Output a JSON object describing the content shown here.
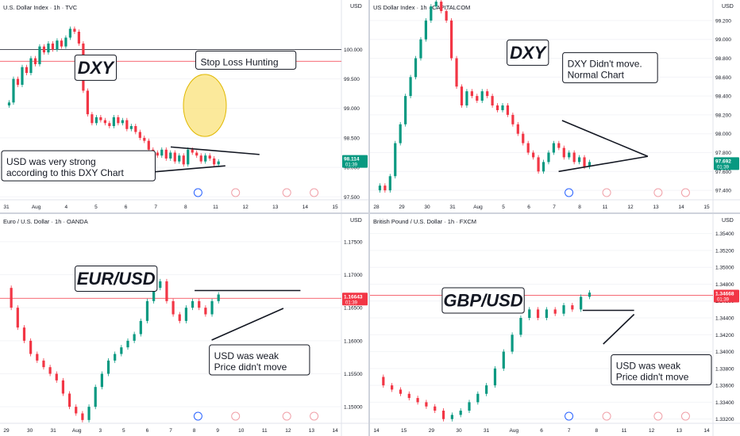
{
  "panels": [
    {
      "id": "dxy-tvc",
      "title": "U.S. Dollar Index · 1h · TVC",
      "currency": "USD",
      "headline": "DXY",
      "x": {
        "labels": [
          "31",
          "Aug",
          "4",
          "5",
          "6",
          "7",
          "8",
          "11",
          "12",
          "13",
          "14",
          "15"
        ]
      },
      "y": {
        "ticks": [
          100.0,
          99.5,
          99.0,
          98.5,
          98.0,
          97.5
        ],
        "decimals": 3,
        "min": 97.45,
        "max": 100.65
      },
      "price": {
        "value": "98.114",
        "timer": "01:39",
        "level": 98.114,
        "color": "#089981"
      },
      "series": [
        99.05,
        99.1,
        99.5,
        99.4,
        99.7,
        99.6,
        99.85,
        99.75,
        100.05,
        99.95,
        100.1,
        100.0,
        100.15,
        100.05,
        100.2,
        100.35,
        100.3,
        100.1,
        99.3,
        98.9,
        98.75,
        98.85,
        98.8,
        98.75,
        98.7,
        98.85,
        98.75,
        98.8,
        98.65,
        98.7,
        98.6,
        98.5,
        98.45,
        98.3,
        98.25,
        98.2,
        98.3,
        98.15,
        98.25,
        98.1,
        98.2,
        98.05,
        98.3,
        98.25,
        98.2,
        98.1,
        98.2,
        98.15,
        98.05,
        98.1
      ],
      "hlines": [
        {
          "v": 100.0,
          "color": "#131722"
        },
        {
          "v": 99.8,
          "color": "#f23645"
        }
      ],
      "annotations": [
        {
          "kind": "label",
          "text": "DXY",
          "fx": 0.28,
          "fy": 0.3
        },
        {
          "kind": "callout",
          "lines": [
            "Stop Loss Hunting"
          ],
          "fx": 0.72,
          "fy": 0.26
        },
        {
          "kind": "callout",
          "lines": [
            "USD was very strong",
            "according to this DXY Chart"
          ],
          "fx": 0.21,
          "fy": 0.82
        }
      ]
    },
    {
      "id": "dxy-capitalcom",
      "title": "US Dollar Index · 1h · CAPITALCOM",
      "currency": "USD",
      "headline": "DXY",
      "x": {
        "labels": [
          "28",
          "29",
          "30",
          "31",
          "Aug",
          "5",
          "6",
          "7",
          "8",
          "11",
          "12",
          "13",
          "14",
          "15"
        ]
      },
      "y": {
        "ticks": [
          99.2,
          99.0,
          98.8,
          98.6,
          98.4,
          98.2,
          98.0,
          97.8,
          97.6,
          97.4
        ],
        "decimals": 3,
        "min": 97.3,
        "max": 99.3
      },
      "price": {
        "value": "97.692",
        "timer": "01:39",
        "level": 97.692,
        "color": "#089981"
      },
      "series": [
        97.4,
        97.45,
        97.4,
        97.55,
        97.9,
        98.1,
        98.4,
        98.6,
        98.8,
        99.0,
        99.2,
        99.35,
        99.4,
        99.3,
        99.2,
        98.8,
        98.5,
        98.3,
        98.45,
        98.4,
        98.35,
        98.45,
        98.4,
        98.3,
        98.25,
        98.3,
        98.2,
        98.1,
        98.0,
        97.9,
        97.8,
        97.75,
        97.6,
        97.7,
        97.8,
        97.9,
        97.85,
        97.75,
        97.8,
        97.7,
        97.75,
        97.65,
        97.7
      ],
      "hlines": [],
      "annotations": [
        {
          "kind": "label",
          "text": "DXY",
          "fx": 0.46,
          "fy": 0.22
        },
        {
          "kind": "callout",
          "lines": [
            "DXY Didn't move.",
            "Normal Chart"
          ],
          "fx": 0.7,
          "fy": 0.3
        }
      ]
    },
    {
      "id": "eurusd-oanda",
      "title": "Euro / U.S. Dollar · 1h · OANDA",
      "currency": "USD",
      "headline": "EUR/USD",
      "x": {
        "labels": [
          "29",
          "30",
          "31",
          "Aug",
          "3",
          "5",
          "6",
          "7",
          "8",
          "9",
          "10",
          "11",
          "12",
          "13",
          "14"
        ]
      },
      "y": {
        "ticks": [
          1.175,
          1.17,
          1.165,
          1.16,
          1.155,
          1.15
        ],
        "decimals": 5,
        "min": 1.1475,
        "max": 1.1775
      },
      "price": {
        "value": "1.16643",
        "timer": "01:39",
        "level": 1.16643,
        "color": "#f23645"
      },
      "series": [
        1.168,
        1.165,
        1.162,
        1.16,
        1.158,
        1.157,
        1.156,
        1.155,
        1.154,
        1.152,
        1.15,
        1.149,
        1.148,
        1.15,
        1.153,
        1.155,
        1.157,
        1.158,
        1.159,
        1.16,
        1.161,
        1.163,
        1.166,
        1.168,
        1.169,
        1.166,
        1.164,
        1.163,
        1.165,
        1.166,
        1.165,
        1.164,
        1.166,
        1.167
      ],
      "hlines": [
        {
          "v": 1.16643,
          "color": "#f23645"
        }
      ],
      "annotations": [
        {
          "kind": "label",
          "text": "EUR/USD",
          "fx": 0.34,
          "fy": 0.27
        },
        {
          "kind": "callout",
          "lines": [
            "USD was weak",
            "Price didn't move"
          ],
          "fx": 0.76,
          "fy": 0.68
        }
      ]
    },
    {
      "id": "gbpusd-fxcm",
      "title": "British Pound / U.S. Dollar · 1h · FXCM",
      "currency": "USD",
      "headline": "GBP/USD",
      "x": {
        "labels": [
          "14",
          "15",
          "29",
          "30",
          "31",
          "Aug",
          "6",
          "7",
          "8",
          "11",
          "12",
          "13",
          "14"
        ]
      },
      "y": {
        "ticks": [
          1.354,
          1.352,
          1.35,
          1.348,
          1.346,
          1.344,
          1.342,
          1.34,
          1.338,
          1.336,
          1.334,
          1.332
        ],
        "decimals": 5,
        "min": 1.3315,
        "max": 1.355
      },
      "price": {
        "value": "1.34668",
        "timer": "01:39",
        "level": 1.34668,
        "color": "#f23645"
      },
      "series": [
        1.337,
        1.336,
        1.3355,
        1.335,
        1.3345,
        1.334,
        1.3335,
        1.333,
        1.332,
        1.3325,
        1.333,
        1.334,
        1.335,
        1.336,
        1.338,
        1.34,
        1.342,
        1.344,
        1.345,
        1.344,
        1.345,
        1.3445,
        1.3455,
        1.345,
        1.3465,
        1.347
      ],
      "hlines": [
        {
          "v": 1.34668,
          "color": "#f23645"
        }
      ],
      "annotations": [
        {
          "kind": "label",
          "text": "GBP/USD",
          "fx": 0.33,
          "fy": 0.38
        },
        {
          "kind": "callout",
          "lines": [
            "USD was weak",
            "Price didn't move"
          ],
          "fx": 0.87,
          "fy": 0.73
        }
      ]
    }
  ],
  "chart_data": [
    {
      "type": "line",
      "title": "U.S. Dollar Index · 1h · TVC",
      "series": [
        {
          "name": "DXY",
          "values": [
            99.05,
            99.1,
            99.5,
            99.4,
            99.7,
            99.6,
            99.85,
            99.75,
            100.05,
            99.95,
            100.1,
            100.0,
            100.15,
            100.05,
            100.2,
            100.35,
            100.3,
            100.1,
            99.3,
            98.9,
            98.75,
            98.85,
            98.8,
            98.75,
            98.7,
            98.85,
            98.75,
            98.8,
            98.65,
            98.7,
            98.6,
            98.5,
            98.45,
            98.3,
            98.25,
            98.2,
            98.3,
            98.15,
            98.25,
            98.1,
            98.2,
            98.05,
            98.3,
            98.25,
            98.2,
            98.1,
            98.2,
            98.15,
            98.05,
            98.1
          ]
        }
      ],
      "ylim": [
        97.45,
        100.65
      ]
    },
    {
      "type": "line",
      "title": "US Dollar Index · 1h · CAPITALCOM",
      "series": [
        {
          "name": "DXY",
          "values": [
            97.4,
            97.45,
            97.4,
            97.55,
            97.9,
            98.1,
            98.4,
            98.6,
            98.8,
            99.0,
            99.2,
            99.35,
            99.4,
            99.3,
            99.2,
            98.8,
            98.5,
            98.3,
            98.45,
            98.4,
            98.35,
            98.45,
            98.4,
            98.3,
            98.25,
            98.3,
            98.2,
            98.1,
            98.0,
            97.9,
            97.8,
            97.75,
            97.6,
            97.7,
            97.8,
            97.9,
            97.85,
            97.75,
            97.8,
            97.7,
            97.75,
            97.65,
            97.7
          ]
        }
      ],
      "ylim": [
        97.3,
        99.3
      ]
    },
    {
      "type": "line",
      "title": "Euro / U.S. Dollar · 1h · OANDA",
      "series": [
        {
          "name": "EUR/USD",
          "values": [
            1.168,
            1.165,
            1.162,
            1.16,
            1.158,
            1.157,
            1.156,
            1.155,
            1.154,
            1.152,
            1.15,
            1.149,
            1.148,
            1.15,
            1.153,
            1.155,
            1.157,
            1.158,
            1.159,
            1.16,
            1.161,
            1.163,
            1.166,
            1.168,
            1.169,
            1.166,
            1.164,
            1.163,
            1.165,
            1.166,
            1.165,
            1.164,
            1.166,
            1.167
          ]
        }
      ],
      "ylim": [
        1.1475,
        1.1775
      ]
    },
    {
      "type": "line",
      "title": "British Pound / U.S. Dollar · 1h · FXCM",
      "series": [
        {
          "name": "GBP/USD",
          "values": [
            1.337,
            1.336,
            1.3355,
            1.335,
            1.3345,
            1.334,
            1.3335,
            1.333,
            1.332,
            1.3325,
            1.333,
            1.334,
            1.335,
            1.336,
            1.338,
            1.34,
            1.342,
            1.344,
            1.345,
            1.344,
            1.345,
            1.3445,
            1.3455,
            1.345,
            1.3465,
            1.347
          ]
        }
      ],
      "ylim": [
        1.3315,
        1.355
      ]
    }
  ]
}
